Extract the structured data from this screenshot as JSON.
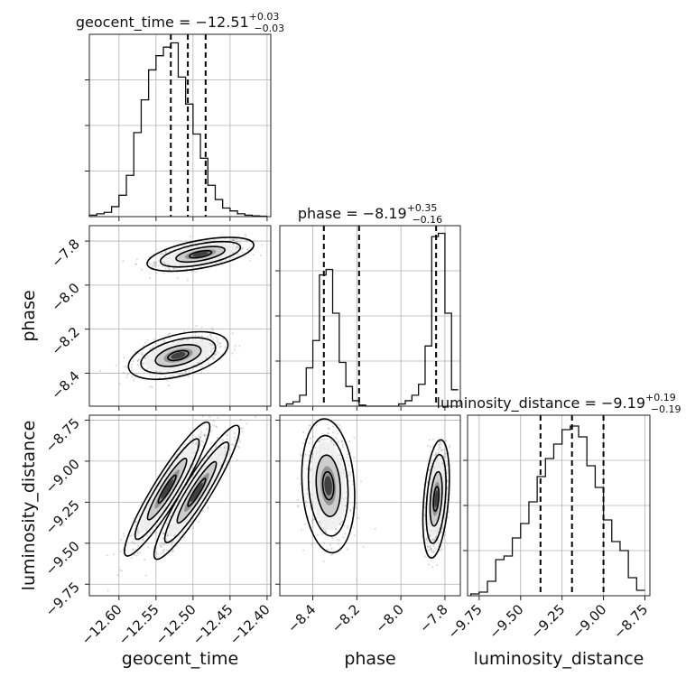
{
  "chart_data": {
    "type": "corner",
    "parameters": [
      {
        "name": "geocent_time",
        "axis_label": "geocent_time",
        "title": {
          "prefix": "geocent_time = ",
          "median": "−12.51",
          "plus": "+0.03",
          "minus": "−0.03"
        },
        "range": [
          -12.64,
          -12.395
        ],
        "ticks": [
          -12.6,
          -12.55,
          -12.5,
          -12.45,
          -12.4
        ],
        "tick_labels": [
          "−12.60",
          "−12.55",
          "−12.50",
          "−12.45",
          "−12.40"
        ],
        "quantiles": [
          -12.53,
          -12.507,
          -12.483
        ],
        "hist_bins": [
          -12.64,
          -12.63,
          -12.62,
          -12.61,
          -12.6,
          -12.59,
          -12.58,
          -12.57,
          -12.56,
          -12.55,
          -12.54,
          -12.53,
          -12.52,
          -12.51,
          -12.5,
          -12.49,
          -12.48,
          -12.47,
          -12.46,
          -12.45,
          -12.44,
          -12.43,
          -12.42,
          -12.41,
          -12.4
        ],
        "hist_counts": [
          1,
          2,
          3,
          7,
          15,
          29,
          59,
          82,
          103,
          113,
          119,
          122,
          98,
          79,
          58,
          41,
          22,
          12,
          6,
          4,
          2,
          1,
          0.5,
          0.3
        ],
        "hist_ylim": [
          0,
          128
        ]
      },
      {
        "name": "phase",
        "axis_label": "phase",
        "title": {
          "prefix": "phase = ",
          "median": "−8.19",
          "plus": "+0.35",
          "minus": "−0.16"
        },
        "range": [
          -8.55,
          -7.73
        ],
        "ticks": [
          -8.4,
          -8.2,
          -8.0,
          -7.8
        ],
        "tick_labels": [
          "−8.4",
          "−8.2",
          "−8.0",
          "−7.8"
        ],
        "quantiles": [
          -8.35,
          -8.19,
          -7.84
        ],
        "hist_bins": [
          -8.55,
          -8.52,
          -8.49,
          -8.46,
          -8.43,
          -8.4,
          -8.37,
          -8.34,
          -8.31,
          -8.28,
          -8.25,
          -8.22,
          -8.19,
          -8.16,
          -8.13,
          -8.1,
          -8.07,
          -8.04,
          -8.01,
          -7.98,
          -7.95,
          -7.92,
          -7.89,
          -7.86,
          -7.83,
          -7.8,
          -7.77,
          -7.74
        ],
        "hist_counts": [
          0,
          2,
          4,
          10,
          35,
          60,
          120,
          125,
          85,
          40,
          18,
          5,
          1,
          0,
          0,
          0,
          0,
          0,
          2,
          5,
          10,
          20,
          55,
          155,
          158,
          85,
          15
        ],
        "hist_ylim": [
          0,
          165
        ]
      },
      {
        "name": "luminosity_distance",
        "axis_label": "luminosity_distance",
        "title": {
          "prefix": "luminosity_distance = ",
          "median": "−9.19",
          "plus": "+0.19",
          "minus": "−0.19"
        },
        "range": [
          -9.82,
          -8.72
        ],
        "ticks": [
          -9.75,
          -9.5,
          -9.25,
          -9.0,
          -8.75
        ],
        "tick_labels": [
          "−9.75",
          "−9.50",
          "−9.25",
          "−9.00",
          "−8.75"
        ],
        "quantiles": [
          -9.38,
          -9.19,
          -9.0
        ],
        "hist_bins": [
          -9.8,
          -9.75,
          -9.7,
          -9.65,
          -9.6,
          -9.55,
          -9.5,
          -9.45,
          -9.4,
          -9.35,
          -9.3,
          -9.25,
          -9.2,
          -9.15,
          -9.1,
          -9.05,
          -9.0,
          -8.95,
          -8.9,
          -8.85,
          -8.8,
          -8.75
        ],
        "hist_counts": [
          1,
          2,
          8,
          20,
          22,
          32,
          40,
          52,
          66,
          76,
          84,
          92,
          94,
          88,
          72,
          60,
          42,
          30,
          25,
          10,
          3
        ],
        "hist_ylim": [
          0,
          100
        ]
      }
    ],
    "pairs": [
      {
        "x": "geocent_time",
        "y": "phase",
        "clusters": [
          {
            "center": [
              -12.49,
              -7.86
            ],
            "sd": [
              0.03,
              0.032
            ],
            "rho": 0.55,
            "n": 700
          },
          {
            "center": [
              -12.52,
              -8.32
            ],
            "sd": [
              0.028,
              0.045
            ],
            "rho": 0.45,
            "n": 700
          }
        ],
        "contour_levels": [
          0.5,
          1.1,
          1.8,
          2.4
        ]
      },
      {
        "x": "geocent_time",
        "y": "luminosity_distance",
        "clusters": [
          {
            "center": [
              -12.535,
              -9.17
            ],
            "sd": [
              0.024,
              0.17
            ],
            "rho": 0.93,
            "n": 700
          },
          {
            "center": [
              -12.495,
              -9.19
            ],
            "sd": [
              0.024,
              0.17
            ],
            "rho": 0.93,
            "n": 700
          }
        ],
        "contour_levels": [
          0.5,
          1.1,
          1.8,
          2.4
        ]
      },
      {
        "x": "phase",
        "y": "luminosity_distance",
        "clusters": [
          {
            "center": [
              -8.33,
              -9.15
            ],
            "sd": [
              0.05,
              0.17
            ],
            "rho": -0.15,
            "n": 700
          },
          {
            "center": [
              -7.84,
              -9.23
            ],
            "sd": [
              0.025,
              0.15
            ],
            "rho": 0.35,
            "n": 700
          }
        ],
        "contour_levels": [
          0.5,
          1.1,
          1.8,
          2.4
        ]
      }
    ]
  }
}
